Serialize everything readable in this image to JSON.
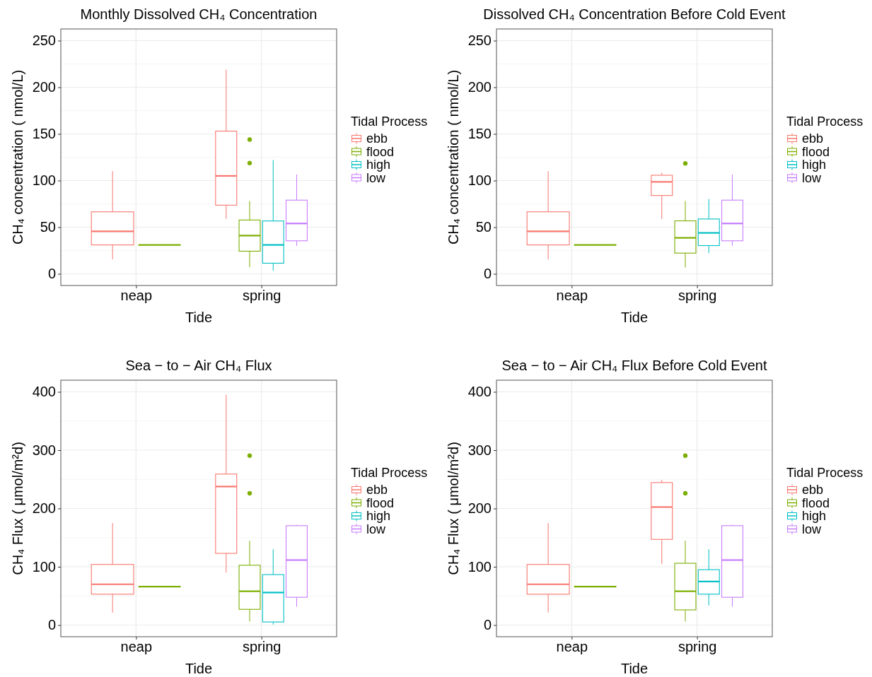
{
  "chart_data": [
    {
      "type": "box",
      "title": "Monthly Dissolved CH₄ Concentration",
      "xlabel": "Tide",
      "ylabel": "CH₄ concentration ( nmol/L)",
      "legend_title": "Tidal Process",
      "categories": [
        "neap",
        "spring"
      ],
      "ylim": [
        -12.5,
        262.5
      ],
      "yticks": [
        0,
        50,
        100,
        150,
        200,
        250
      ],
      "grid": true,
      "legend": "right",
      "series": [
        {
          "name": "ebb",
          "color": "#f8766d",
          "boxes": [
            {
              "low": 15.5,
              "q1": 31,
              "median": 45.5,
              "q3": 66.5,
              "high": 110
            },
            {
              "low": 59,
              "q1": 73.6,
              "median": 105,
              "q3": 153,
              "high": 219
            }
          ]
        },
        {
          "name": "flood",
          "color": "#7cae00",
          "boxes": [
            {
              "low": 31,
              "q1": 31,
              "median": 31,
              "q3": 31,
              "high": 31
            },
            {
              "low": 7,
              "q1": 24.3,
              "median": 41,
              "q3": 57.7,
              "high": 78,
              "outliers": [
                144,
                118.7
              ]
            }
          ]
        },
        {
          "name": "high",
          "color": "#00bfc4",
          "boxes": [
            null,
            {
              "low": 3.3,
              "q1": 11.4,
              "median": 31,
              "q3": 56.7,
              "high": 122
            }
          ]
        },
        {
          "name": "low",
          "color": "#c77cff",
          "boxes": [
            null,
            {
              "low": 30,
              "q1": 35.4,
              "median": 54,
              "q3": 79,
              "high": 106.5
            }
          ]
        }
      ]
    },
    {
      "type": "box",
      "title": "Dissolved CH₄ Concentration Before Cold Event",
      "xlabel": "Tide",
      "ylabel": "CH₄ concentration ( nmol/L)",
      "legend_title": "Tidal Process",
      "categories": [
        "neap",
        "spring"
      ],
      "ylim": [
        -12.5,
        262.5
      ],
      "yticks": [
        0,
        50,
        100,
        150,
        200,
        250
      ],
      "grid": true,
      "legend": "right",
      "series": [
        {
          "name": "ebb",
          "color": "#f8766d",
          "boxes": [
            {
              "low": 15.5,
              "q1": 31,
              "median": 45.5,
              "q3": 66.5,
              "high": 110
            },
            {
              "low": 58.8,
              "q1": 84,
              "median": 98.6,
              "q3": 105.7,
              "high": 108.5
            }
          ]
        },
        {
          "name": "flood",
          "color": "#7cae00",
          "boxes": [
            {
              "low": 31,
              "q1": 31,
              "median": 31,
              "q3": 31,
              "high": 31
            },
            {
              "low": 6.8,
              "q1": 22.2,
              "median": 38.6,
              "q3": 56.8,
              "high": 78,
              "outliers": [
                118.3
              ]
            }
          ]
        },
        {
          "name": "high",
          "color": "#00bfc4",
          "boxes": [
            null,
            {
              "low": 22.2,
              "q1": 30.3,
              "median": 43.9,
              "q3": 58.8,
              "high": 80.2
            }
          ]
        },
        {
          "name": "low",
          "color": "#c77cff",
          "boxes": [
            null,
            {
              "low": 30,
              "q1": 35.4,
              "median": 54,
              "q3": 79,
              "high": 106.5
            }
          ]
        }
      ]
    },
    {
      "type": "box",
      "title": "Sea − to − Air CH₄ Flux",
      "xlabel": "Tide",
      "ylabel": "CH₄ Flux ( μmol/m²d)",
      "legend_title": "Tidal Process",
      "categories": [
        "neap",
        "spring"
      ],
      "ylim": [
        -20,
        420
      ],
      "yticks": [
        0,
        100,
        200,
        300,
        400
      ],
      "grid": true,
      "legend": "right",
      "series": [
        {
          "name": "ebb",
          "color": "#f8766d",
          "boxes": [
            {
              "low": 21.4,
              "q1": 53,
              "median": 70,
              "q3": 104,
              "high": 175
            },
            {
              "low": 90,
              "q1": 123,
              "median": 237.6,
              "q3": 259,
              "high": 395
            }
          ]
        },
        {
          "name": "flood",
          "color": "#7cae00",
          "boxes": [
            {
              "low": 66,
              "q1": 66,
              "median": 66,
              "q3": 66,
              "high": 66
            },
            {
              "low": 6,
              "q1": 27,
              "median": 58,
              "q3": 102.6,
              "high": 144.6,
              "outliers": [
                290.5,
                226
              ]
            }
          ]
        },
        {
          "name": "high",
          "color": "#00bfc4",
          "boxes": [
            null,
            {
              "low": 1,
              "q1": 5.3,
              "median": 55.8,
              "q3": 86.5,
              "high": 130
            }
          ]
        },
        {
          "name": "low",
          "color": "#c77cff",
          "boxes": [
            null,
            {
              "low": 31.5,
              "q1": 47.7,
              "median": 111.5,
              "q3": 170.5,
              "high": 172
            }
          ]
        }
      ]
    },
    {
      "type": "box",
      "title": "Sea − to − Air CH₄ Flux Before Cold Event",
      "xlabel": "Tide",
      "ylabel": "CH₄ Flux ( μmol/m²d)",
      "legend_title": "Tidal Process",
      "categories": [
        "neap",
        "spring"
      ],
      "ylim": [
        -20,
        420
      ],
      "yticks": [
        0,
        100,
        200,
        300,
        400
      ],
      "grid": true,
      "legend": "right",
      "series": [
        {
          "name": "ebb",
          "color": "#f8766d",
          "boxes": [
            {
              "low": 21.4,
              "q1": 53,
              "median": 70,
              "q3": 104,
              "high": 175
            },
            {
              "low": 105,
              "q1": 147,
              "median": 202.4,
              "q3": 244.4,
              "high": 249
            }
          ]
        },
        {
          "name": "flood",
          "color": "#7cae00",
          "boxes": [
            {
              "low": 66,
              "q1": 66,
              "median": 66,
              "q3": 66,
              "high": 66
            },
            {
              "low": 6,
              "q1": 26,
              "median": 58,
              "q3": 106,
              "high": 144.6,
              "outliers": [
                290.5,
                226
              ]
            }
          ]
        },
        {
          "name": "high",
          "color": "#00bfc4",
          "boxes": [
            null,
            {
              "low": 33.5,
              "q1": 53,
              "median": 74.7,
              "q3": 95,
              "high": 130
            }
          ]
        },
        {
          "name": "low",
          "color": "#c77cff",
          "boxes": [
            null,
            {
              "low": 31.5,
              "q1": 47.7,
              "median": 111.5,
              "q3": 170.5,
              "high": 172
            }
          ]
        }
      ]
    }
  ]
}
